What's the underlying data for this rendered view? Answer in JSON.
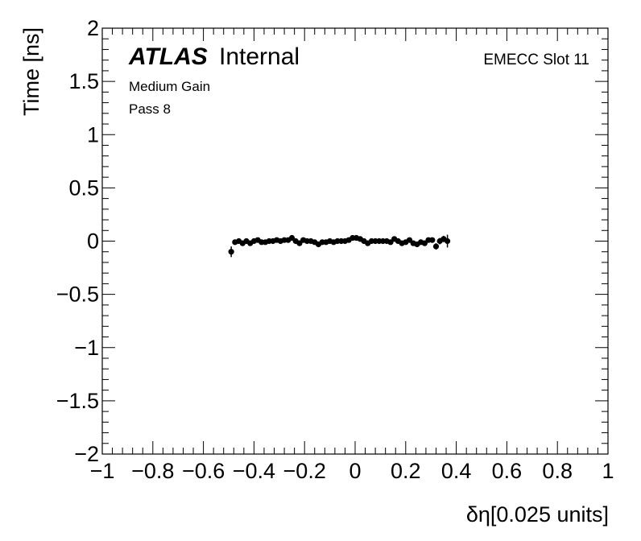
{
  "chart_data": {
    "type": "scatter",
    "xlabel": "δη[0.025 units]",
    "ylabel": "Time [ns]",
    "xlim": [
      -1,
      1
    ],
    "ylim": [
      -2,
      2
    ],
    "x_ticks": [
      "−1",
      "−0.8",
      "−0.6",
      "−0.4",
      "−0.2",
      "0",
      "0.2",
      "0.4",
      "0.6",
      "0.8",
      "1"
    ],
    "y_ticks": [
      "−2",
      "−1.5",
      "−1",
      "−0.5",
      "0",
      "0.5",
      "1",
      "1.5",
      "2"
    ],
    "grid": false,
    "annotations": {
      "experiment": "ATLAS",
      "status": "Internal",
      "line1": "Medium Gain",
      "line2": "Pass 8",
      "right_label": "EMECC Slot 11"
    },
    "series": [
      {
        "marker_color": "#000000",
        "points": [
          {
            "x": -0.49,
            "y": -0.1,
            "err": 0.05
          },
          {
            "x": -0.475,
            "y": -0.01,
            "err": 0.02
          },
          {
            "x": -0.46,
            "y": 0.0,
            "err": 0.02
          },
          {
            "x": -0.445,
            "y": -0.02,
            "err": 0.02
          },
          {
            "x": -0.43,
            "y": 0.0,
            "err": 0.02
          },
          {
            "x": -0.415,
            "y": -0.02,
            "err": 0.02
          },
          {
            "x": -0.4,
            "y": 0.0,
            "err": 0.02
          },
          {
            "x": -0.385,
            "y": 0.01,
            "err": 0.02
          },
          {
            "x": -0.37,
            "y": -0.01,
            "err": 0.02
          },
          {
            "x": -0.355,
            "y": -0.01,
            "err": 0.02
          },
          {
            "x": -0.34,
            "y": 0.0,
            "err": 0.02
          },
          {
            "x": -0.325,
            "y": 0.0,
            "err": 0.02
          },
          {
            "x": -0.31,
            "y": 0.01,
            "err": 0.02
          },
          {
            "x": -0.295,
            "y": 0.0,
            "err": 0.02
          },
          {
            "x": -0.28,
            "y": 0.01,
            "err": 0.02
          },
          {
            "x": -0.265,
            "y": 0.01,
            "err": 0.02
          },
          {
            "x": -0.25,
            "y": 0.03,
            "err": 0.02
          },
          {
            "x": -0.235,
            "y": 0.0,
            "err": 0.02
          },
          {
            "x": -0.22,
            "y": -0.02,
            "err": 0.02
          },
          {
            "x": -0.205,
            "y": 0.01,
            "err": 0.02
          },
          {
            "x": -0.19,
            "y": 0.0,
            "err": 0.02
          },
          {
            "x": -0.175,
            "y": 0.0,
            "err": 0.02
          },
          {
            "x": -0.16,
            "y": -0.01,
            "err": 0.02
          },
          {
            "x": -0.145,
            "y": -0.03,
            "err": 0.02
          },
          {
            "x": -0.13,
            "y": -0.01,
            "err": 0.02
          },
          {
            "x": -0.115,
            "y": -0.01,
            "err": 0.02
          },
          {
            "x": -0.1,
            "y": 0.0,
            "err": 0.02
          },
          {
            "x": -0.085,
            "y": -0.01,
            "err": 0.02
          },
          {
            "x": -0.07,
            "y": 0.0,
            "err": 0.02
          },
          {
            "x": -0.055,
            "y": 0.0,
            "err": 0.02
          },
          {
            "x": -0.04,
            "y": 0.0,
            "err": 0.02
          },
          {
            "x": -0.025,
            "y": 0.01,
            "err": 0.02
          },
          {
            "x": -0.01,
            "y": 0.03,
            "err": 0.02
          },
          {
            "x": 0.005,
            "y": 0.03,
            "err": 0.02
          },
          {
            "x": 0.02,
            "y": 0.02,
            "err": 0.02
          },
          {
            "x": 0.035,
            "y": 0.0,
            "err": 0.02
          },
          {
            "x": 0.05,
            "y": -0.02,
            "err": 0.02
          },
          {
            "x": 0.065,
            "y": 0.0,
            "err": 0.02
          },
          {
            "x": 0.08,
            "y": 0.0,
            "err": 0.02
          },
          {
            "x": 0.095,
            "y": 0.0,
            "err": 0.02
          },
          {
            "x": 0.11,
            "y": 0.0,
            "err": 0.02
          },
          {
            "x": 0.125,
            "y": 0.0,
            "err": 0.02
          },
          {
            "x": 0.14,
            "y": -0.01,
            "err": 0.02
          },
          {
            "x": 0.155,
            "y": 0.02,
            "err": 0.02
          },
          {
            "x": 0.17,
            "y": 0.0,
            "err": 0.02
          },
          {
            "x": 0.185,
            "y": -0.02,
            "err": 0.02
          },
          {
            "x": 0.2,
            "y": -0.01,
            "err": 0.02
          },
          {
            "x": 0.215,
            "y": 0.01,
            "err": 0.02
          },
          {
            "x": 0.23,
            "y": -0.02,
            "err": 0.02
          },
          {
            "x": 0.245,
            "y": -0.03,
            "err": 0.02
          },
          {
            "x": 0.26,
            "y": -0.01,
            "err": 0.02
          },
          {
            "x": 0.275,
            "y": -0.02,
            "err": 0.02
          },
          {
            "x": 0.29,
            "y": 0.01,
            "err": 0.02
          },
          {
            "x": 0.305,
            "y": 0.01,
            "err": 0.02
          },
          {
            "x": 0.32,
            "y": -0.05,
            "err": 0.03
          },
          {
            "x": 0.335,
            "y": 0.0,
            "err": 0.03
          },
          {
            "x": 0.35,
            "y": 0.02,
            "err": 0.03
          },
          {
            "x": 0.365,
            "y": 0.0,
            "err": 0.06
          }
        ]
      }
    ]
  }
}
